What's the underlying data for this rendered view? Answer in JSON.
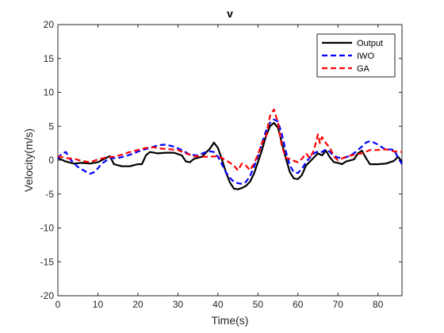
{
  "chart_data": {
    "type": "line",
    "title": "v",
    "xlabel": "Time(s)",
    "ylabel": "Velocity(m/s)",
    "xlim": [
      0,
      86
    ],
    "ylim": [
      -20,
      20
    ],
    "xticks": [
      0,
      10,
      20,
      30,
      40,
      50,
      60,
      70,
      80
    ],
    "yticks": [
      -20,
      -15,
      -10,
      -5,
      0,
      5,
      10,
      15,
      20
    ],
    "grid": false,
    "legend_position": "top-right",
    "series": [
      {
        "name": "Output",
        "color": "#000000",
        "style": "solid",
        "points": [
          [
            0,
            0.3
          ],
          [
            2,
            -0.2
          ],
          [
            4,
            -0.5
          ],
          [
            6,
            -0.4
          ],
          [
            8,
            -0.5
          ],
          [
            10,
            -0.3
          ],
          [
            12,
            0.3
          ],
          [
            13,
            0.6
          ],
          [
            14,
            -0.6
          ],
          [
            16,
            -0.9
          ],
          [
            18,
            -0.9
          ],
          [
            20,
            -0.6
          ],
          [
            21,
            -0.6
          ],
          [
            22,
            0.7
          ],
          [
            23,
            1.2
          ],
          [
            25,
            1.0
          ],
          [
            27,
            1.1
          ],
          [
            29,
            1.1
          ],
          [
            31,
            0.7
          ],
          [
            32,
            -0.2
          ],
          [
            33,
            -0.3
          ],
          [
            34,
            0.2
          ],
          [
            36,
            0.5
          ],
          [
            38,
            1.7
          ],
          [
            39,
            2.6
          ],
          [
            40,
            1.8
          ],
          [
            41,
            0.1
          ],
          [
            42,
            -1.8
          ],
          [
            43,
            -3.3
          ],
          [
            44,
            -4.2
          ],
          [
            45,
            -4.3
          ],
          [
            46,
            -4.1
          ],
          [
            47,
            -3.8
          ],
          [
            48,
            -3.2
          ],
          [
            49,
            -2.0
          ],
          [
            50,
            -0.3
          ],
          [
            51,
            1.5
          ],
          [
            52,
            3.5
          ],
          [
            53,
            5.0
          ],
          [
            54,
            5.5
          ],
          [
            55,
            4.8
          ],
          [
            56,
            2.5
          ],
          [
            57,
            0.2
          ],
          [
            58,
            -1.8
          ],
          [
            59,
            -2.7
          ],
          [
            60,
            -2.8
          ],
          [
            61,
            -2.2
          ],
          [
            62,
            -0.8
          ],
          [
            63,
            -0.2
          ],
          [
            64,
            0.4
          ],
          [
            65,
            1.0
          ],
          [
            66,
            0.7
          ],
          [
            67,
            1.4
          ],
          [
            68,
            0.4
          ],
          [
            69,
            -0.3
          ],
          [
            70,
            -0.4
          ],
          [
            71,
            -0.6
          ],
          [
            72,
            -0.2
          ],
          [
            74,
            0.1
          ],
          [
            75,
            1.0
          ],
          [
            76,
            1.4
          ],
          [
            77,
            0.3
          ],
          [
            78,
            -0.6
          ],
          [
            80,
            -0.6
          ],
          [
            82,
            -0.5
          ],
          [
            84,
            -0.1
          ],
          [
            85,
            0.5
          ],
          [
            86,
            -0.2
          ]
        ]
      },
      {
        "name": "IWO",
        "color": "#0000ff",
        "style": "dashed",
        "points": [
          [
            0,
            0.2
          ],
          [
            1,
            1.0
          ],
          [
            2,
            1.2
          ],
          [
            3,
            0.2
          ],
          [
            5,
            -1.0
          ],
          [
            7,
            -1.7
          ],
          [
            8,
            -2.0
          ],
          [
            9,
            -1.8
          ],
          [
            10,
            -1.2
          ],
          [
            11,
            -0.5
          ],
          [
            13,
            0.3
          ],
          [
            15,
            0.3
          ],
          [
            17,
            0.6
          ],
          [
            19,
            1.0
          ],
          [
            21,
            1.5
          ],
          [
            23,
            1.8
          ],
          [
            25,
            2.2
          ],
          [
            27,
            2.3
          ],
          [
            29,
            2.0
          ],
          [
            31,
            1.5
          ],
          [
            33,
            0.8
          ],
          [
            35,
            0.7
          ],
          [
            37,
            1.2
          ],
          [
            38,
            1.3
          ],
          [
            39,
            1.2
          ],
          [
            40,
            0.5
          ],
          [
            41,
            -0.6
          ],
          [
            42,
            -1.8
          ],
          [
            43,
            -2.6
          ],
          [
            44,
            -3.2
          ],
          [
            45,
            -3.4
          ],
          [
            46,
            -3.5
          ],
          [
            47,
            -3.2
          ],
          [
            48,
            -2.4
          ],
          [
            49,
            -1.0
          ],
          [
            50,
            0.6
          ],
          [
            51,
            2.5
          ],
          [
            52,
            4.3
          ],
          [
            53,
            5.5
          ],
          [
            54,
            6.0
          ],
          [
            55,
            5.7
          ],
          [
            56,
            3.8
          ],
          [
            57,
            1.2
          ],
          [
            58,
            -0.8
          ],
          [
            59,
            -1.8
          ],
          [
            60,
            -1.9
          ],
          [
            61,
            -1.3
          ],
          [
            62,
            -0.3
          ],
          [
            63,
            0.4
          ],
          [
            64,
            1.0
          ],
          [
            65,
            1.3
          ],
          [
            66,
            1.2
          ],
          [
            67,
            1.6
          ],
          [
            68,
            1.2
          ],
          [
            69,
            0.6
          ],
          [
            70,
            0.4
          ],
          [
            71,
            0.3
          ],
          [
            72,
            0.4
          ],
          [
            74,
            1.0
          ],
          [
            76,
            2.0
          ],
          [
            77,
            2.6
          ],
          [
            78,
            2.8
          ],
          [
            79,
            2.6
          ],
          [
            80,
            2.3
          ],
          [
            81,
            1.9
          ],
          [
            82,
            1.5
          ],
          [
            83,
            1.6
          ],
          [
            84,
            1.5
          ],
          [
            85,
            0.4
          ],
          [
            86,
            -0.6
          ]
        ]
      },
      {
        "name": "GA",
        "color": "#ff0000",
        "style": "dashed",
        "points": [
          [
            0,
            0.6
          ],
          [
            2,
            0.3
          ],
          [
            4,
            0.2
          ],
          [
            6,
            -0.1
          ],
          [
            8,
            -0.3
          ],
          [
            10,
            0.1
          ],
          [
            12,
            0.4
          ],
          [
            14,
            0.5
          ],
          [
            16,
            0.8
          ],
          [
            18,
            1.2
          ],
          [
            20,
            1.5
          ],
          [
            22,
            1.8
          ],
          [
            24,
            1.9
          ],
          [
            26,
            1.7
          ],
          [
            28,
            1.6
          ],
          [
            30,
            1.5
          ],
          [
            32,
            1.0
          ],
          [
            34,
            0.6
          ],
          [
            36,
            0.5
          ],
          [
            38,
            0.5
          ],
          [
            40,
            0.6
          ],
          [
            41,
            0.3
          ],
          [
            42,
            0.0
          ],
          [
            43,
            -0.4
          ],
          [
            44,
            -0.8
          ],
          [
            45,
            -1.5
          ],
          [
            46,
            -0.5
          ],
          [
            47,
            -0.8
          ],
          [
            48,
            -1.5
          ],
          [
            49,
            -0.5
          ],
          [
            50,
            0.8
          ],
          [
            51,
            2.5
          ],
          [
            52,
            3.5
          ],
          [
            53,
            6.5
          ],
          [
            54,
            7.5
          ],
          [
            55,
            5.5
          ],
          [
            56,
            2.0
          ],
          [
            57,
            0.3
          ],
          [
            58,
            0.2
          ],
          [
            59,
            -0.1
          ],
          [
            60,
            -0.3
          ],
          [
            61,
            0.2
          ],
          [
            62,
            1.0
          ],
          [
            63,
            0.3
          ],
          [
            64,
            1.5
          ],
          [
            65,
            3.8
          ],
          [
            65.5,
            2.5
          ],
          [
            66,
            3.4
          ],
          [
            67,
            2.5
          ],
          [
            68,
            1.8
          ],
          [
            69,
            0.5
          ],
          [
            70,
            0.0
          ],
          [
            72,
            0.5
          ],
          [
            74,
            0.8
          ],
          [
            76,
            1.0
          ],
          [
            78,
            1.5
          ],
          [
            80,
            1.5
          ],
          [
            82,
            1.6
          ],
          [
            84,
            1.3
          ],
          [
            86,
            1.2
          ]
        ]
      }
    ]
  }
}
